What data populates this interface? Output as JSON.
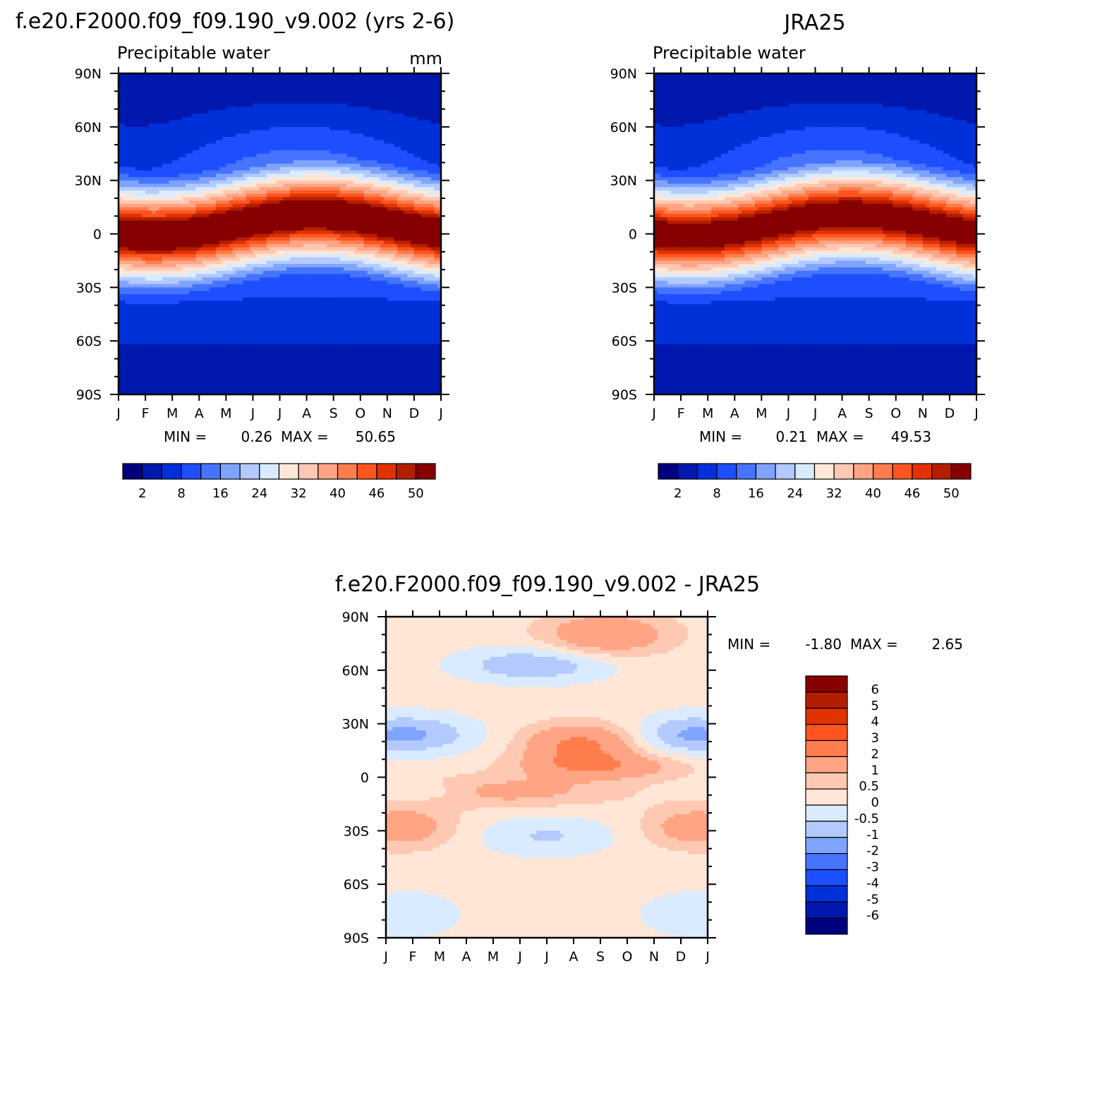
{
  "chart_data": [
    {
      "type": "heatmap",
      "title": "f.e20.F2000.f09_f09.190_v9.002 (yrs 2-6)",
      "subtitle": "Precipitable water",
      "units": "mm",
      "x_ticks": [
        "J",
        "F",
        "M",
        "A",
        "M",
        "J",
        "J",
        "A",
        "S",
        "O",
        "N",
        "D",
        "J"
      ],
      "y_ticks": [
        "90N",
        "60N",
        "30N",
        "0",
        "30S",
        "60S",
        "90S"
      ],
      "ylim": [
        -90,
        90
      ],
      "min_label": "MIN =",
      "min_value": "0.26",
      "max_label": "MAX =",
      "max_value": "50.65",
      "levels": [
        "2",
        "8",
        "16",
        "24",
        "32",
        "40",
        "46",
        "50"
      ],
      "field": {
        "kind": "climatology",
        "equator_peak": 50.65,
        "polar_min": 0.26
      }
    },
    {
      "type": "heatmap",
      "title": "JRA25",
      "subtitle": "Precipitable water",
      "x_ticks": [
        "J",
        "F",
        "M",
        "A",
        "M",
        "J",
        "J",
        "A",
        "S",
        "O",
        "N",
        "D",
        "J"
      ],
      "y_ticks": [
        "90N",
        "60N",
        "30N",
        "0",
        "30S",
        "60S",
        "90S"
      ],
      "ylim": [
        -90,
        90
      ],
      "min_label": "MIN =",
      "min_value": "0.21",
      "max_label": "MAX =",
      "max_value": "49.53",
      "levels": [
        "2",
        "8",
        "16",
        "24",
        "32",
        "40",
        "46",
        "50"
      ],
      "field": {
        "kind": "climatology",
        "equator_peak": 49.53,
        "polar_min": 0.21
      }
    },
    {
      "type": "heatmap",
      "title": "f.e20.F2000.f09_f09.190_v9.002 - JRA25",
      "x_ticks": [
        "J",
        "F",
        "M",
        "A",
        "M",
        "J",
        "J",
        "A",
        "S",
        "O",
        "N",
        "D",
        "J"
      ],
      "y_ticks": [
        "90N",
        "60N",
        "30N",
        "0",
        "30S",
        "60S",
        "90S"
      ],
      "ylim": [
        -90,
        90
      ],
      "min_label": "MIN =",
      "min_value": "-1.80",
      "max_label": "MAX =",
      "max_value": "2.65",
      "levels": [
        "6",
        "5",
        "4",
        "3",
        "2",
        "1",
        "0.5",
        "0",
        "-0.5",
        "-1",
        "-2",
        "-3",
        "-4",
        "-5",
        "-6"
      ],
      "field": {
        "kind": "difference"
      }
    }
  ],
  "colors": {
    "abs_scale": [
      "#00007f",
      "#0018ad",
      "#0030d8",
      "#1e4fff",
      "#4674ff",
      "#7fa4ff",
      "#b2caff",
      "#daebff",
      "#ffe6d6",
      "#ffc8b2",
      "#ffa584",
      "#ff7d4c",
      "#ff5420",
      "#e13202",
      "#b41e00",
      "#870000"
    ],
    "diff_scale": [
      "#870000",
      "#b41e00",
      "#e13202",
      "#ff5420",
      "#ff7d4c",
      "#ffa584",
      "#ffc8b2",
      "#ffe6d6",
      "#daebff",
      "#b2caff",
      "#7fa4ff",
      "#4674ff",
      "#1e4fff",
      "#0030d8",
      "#0018ad",
      "#00007f"
    ]
  }
}
